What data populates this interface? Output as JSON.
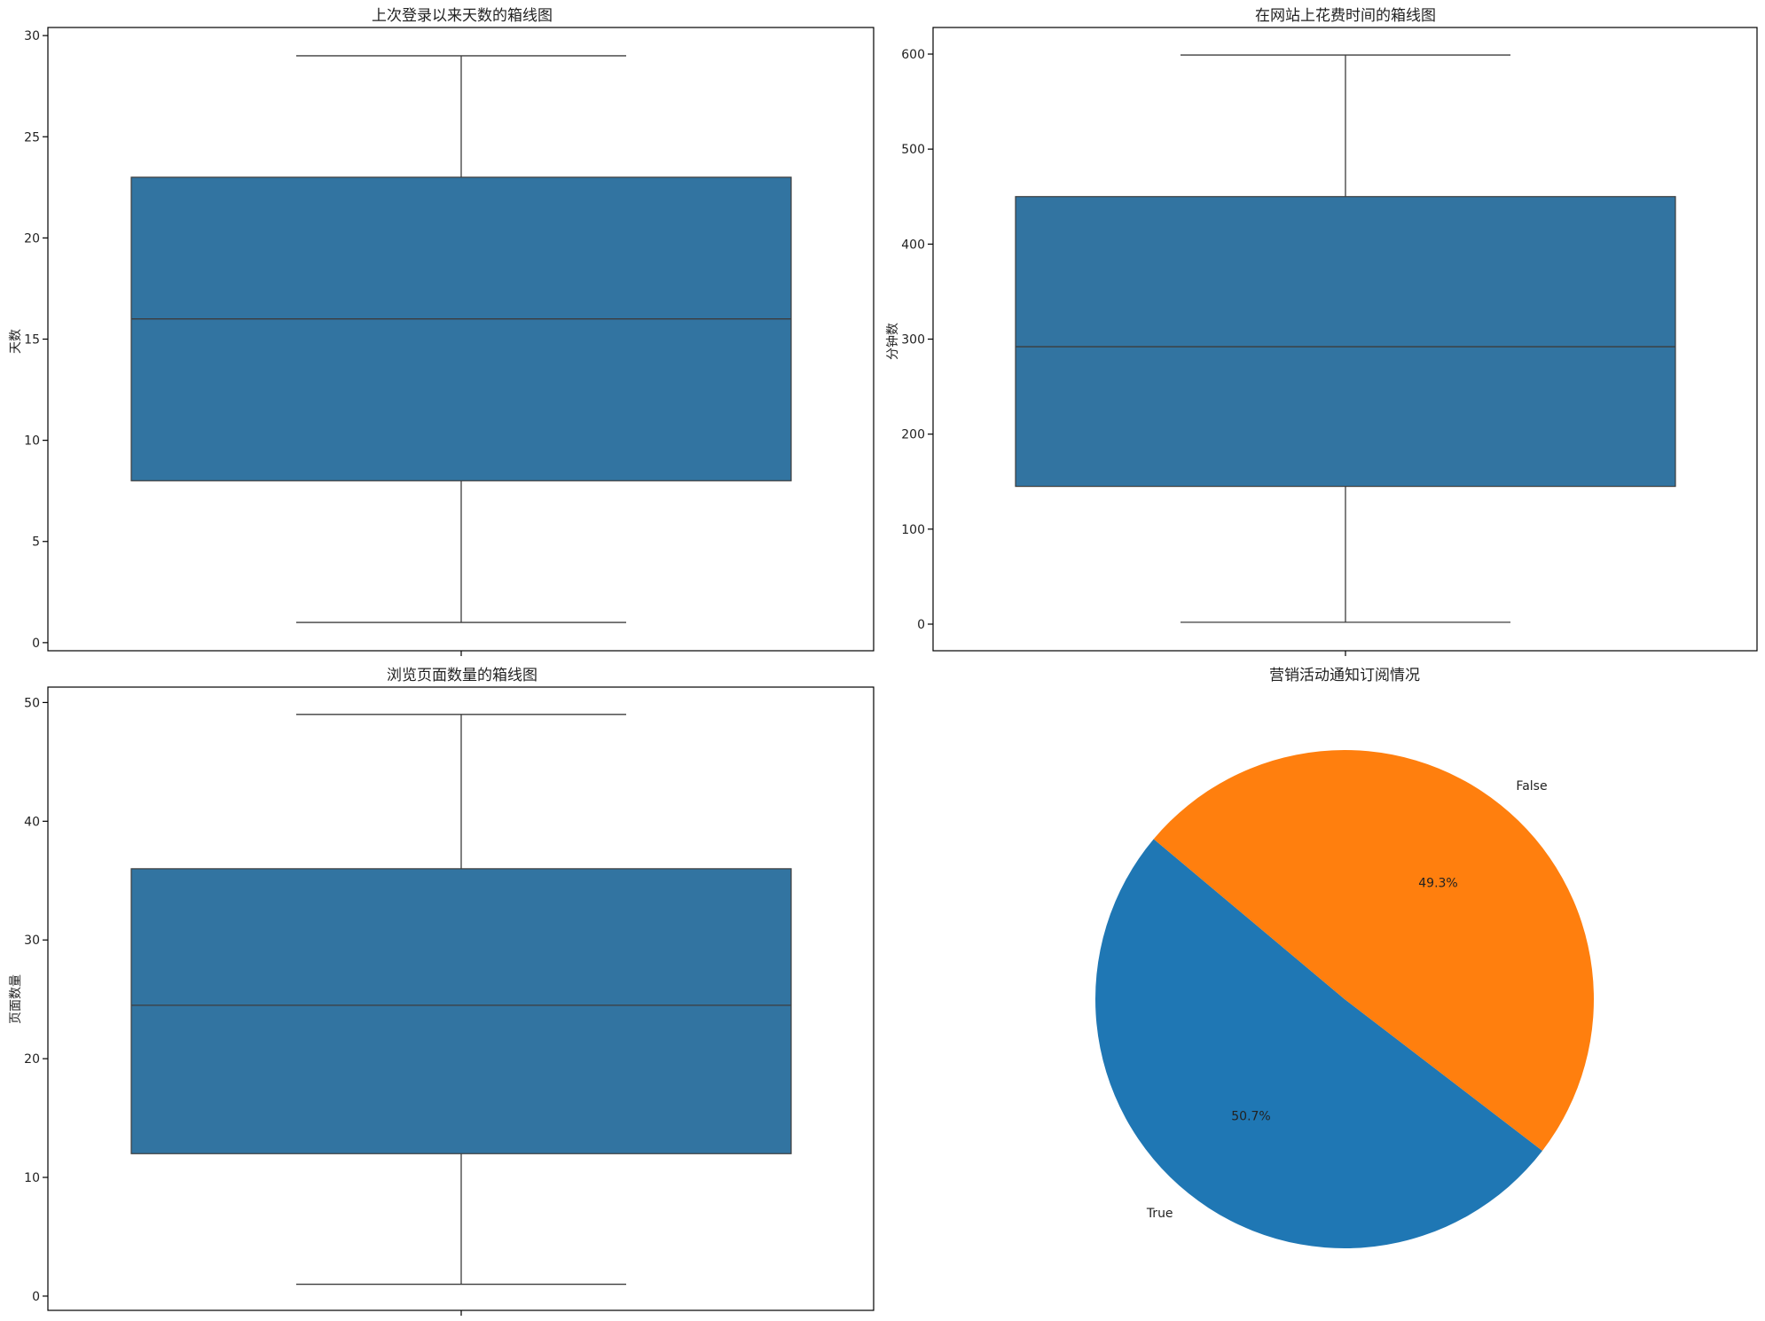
{
  "chart_data": [
    {
      "type": "box",
      "title": "上次登录以来天数的箱线图",
      "xlabel": "",
      "ylabel": "天数",
      "ylim": [
        -0.4,
        30.4
      ],
      "yticks": [
        0,
        5,
        10,
        15,
        20,
        25,
        30
      ],
      "color": "#3274a1",
      "stats": {
        "min": 1,
        "q1": 8,
        "median": 16,
        "q3": 23,
        "max": 29
      },
      "grid": false
    },
    {
      "type": "box",
      "title": "在网站上花费时间的箱线图",
      "xlabel": "",
      "ylabel": "分钟数",
      "ylim": [
        -28,
        628
      ],
      "yticks": [
        0,
        100,
        200,
        300,
        400,
        500,
        600
      ],
      "color": "#3274a1",
      "stats": {
        "min": 2,
        "q1": 145,
        "median": 292,
        "q3": 450,
        "max": 599
      },
      "grid": false
    },
    {
      "type": "box",
      "title": "浏览页面数量的箱线图",
      "xlabel": "",
      "ylabel": "页面数量",
      "ylim": [
        -1.2,
        51.3
      ],
      "yticks": [
        0,
        10,
        20,
        30,
        40,
        50
      ],
      "color": "#3274a1",
      "stats": {
        "min": 1,
        "q1": 12,
        "median": 24.5,
        "q3": 36,
        "max": 49
      },
      "grid": false
    },
    {
      "type": "pie",
      "title": "营销活动通知订阅情况",
      "start_angle_deg": 140,
      "slices": [
        {
          "label": "True",
          "value": 50.7,
          "pct_label": "50.7%",
          "color": "#1f77b4"
        },
        {
          "label": "False",
          "value": 49.3,
          "pct_label": "49.3%",
          "color": "#ff7f0e"
        }
      ]
    }
  ]
}
